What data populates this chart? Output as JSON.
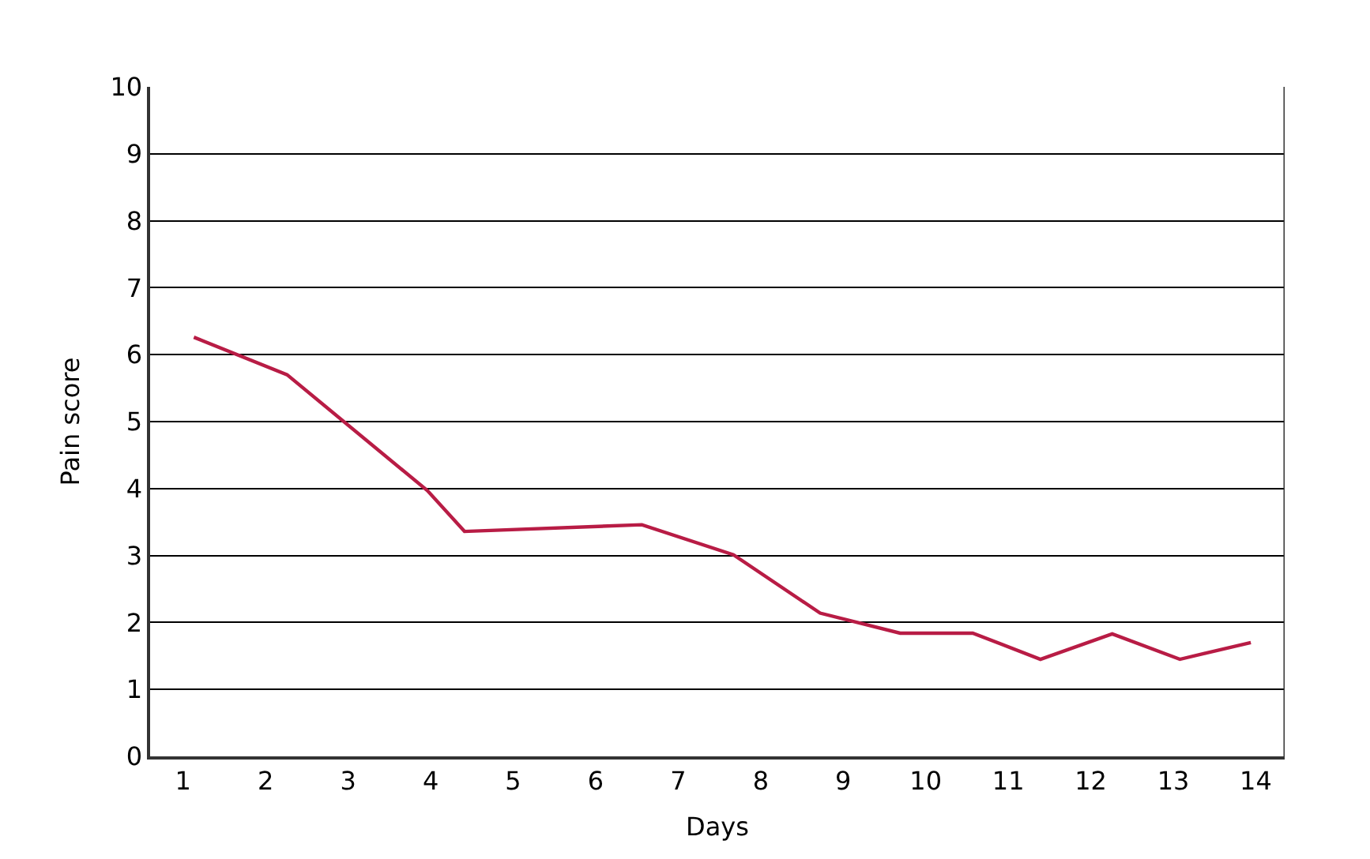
{
  "chart_data": {
    "type": "line",
    "xlabel": "Days",
    "ylabel": "Pain score",
    "x": [
      1.13,
      2.26,
      3.96,
      4.41,
      6.56,
      7.67,
      8.72,
      9.69,
      10.57,
      11.39,
      12.26,
      13.08,
      13.94
    ],
    "series": [
      {
        "color": "#b81c45",
        "values": [
          6.26,
          5.7,
          3.97,
          3.36,
          3.46,
          3.01,
          2.14,
          1.84,
          1.84,
          1.45,
          1.83,
          1.45,
          1.7
        ]
      }
    ],
    "xlim": [
      0.6,
      14.35
    ],
    "xticks": [
      1,
      2,
      3,
      4,
      5,
      6,
      7,
      8,
      9,
      10,
      11,
      12,
      13,
      14
    ],
    "ylim": [
      0,
      10
    ],
    "yticks": [
      0,
      1,
      2,
      3,
      4,
      5,
      6,
      7,
      8,
      9,
      10
    ],
    "grid": "y",
    "legend": false,
    "marker": "none",
    "line_style": "solid"
  }
}
